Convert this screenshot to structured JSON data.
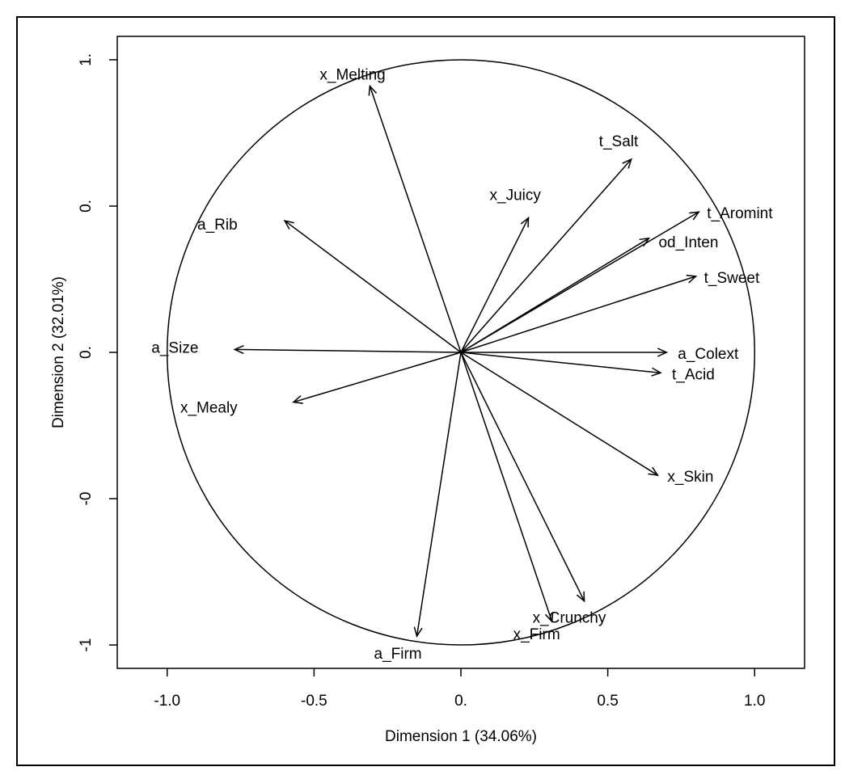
{
  "chart_data": {
    "type": "scatter",
    "subtype": "correlation-circle",
    "xlabel": "Dimension 1 (34.06%)",
    "ylabel": "Dimension 2 (32.01%)",
    "xlim": [
      -1.17,
      1.17
    ],
    "ylim": [
      -1.08,
      1.08
    ],
    "x_ticks": [
      {
        "value": -1.0,
        "label": "-1.0"
      },
      {
        "value": -0.5,
        "label": "-0.5"
      },
      {
        "value": 0.0,
        "label": "0."
      },
      {
        "value": 0.5,
        "label": "0.5"
      },
      {
        "value": 1.0,
        "label": "1.0"
      }
    ],
    "y_ticks": [
      {
        "value": 1.0,
        "label": "1."
      },
      {
        "value": 0.5,
        "label": "0."
      },
      {
        "value": 0.0,
        "label": "0."
      },
      {
        "value": -0.5,
        "label": "-0"
      },
      {
        "value": -1.0,
        "label": "-1"
      }
    ],
    "unit_circle": true,
    "grid": false,
    "color": "#000000",
    "variables": [
      {
        "name": "x_Melting",
        "x": -0.31,
        "y": 0.91
      },
      {
        "name": "t_Salt",
        "x": 0.58,
        "y": 0.66
      },
      {
        "name": "x_Juicy",
        "x": 0.23,
        "y": 0.46
      },
      {
        "name": "a_Rib",
        "x": -0.6,
        "y": 0.45
      },
      {
        "name": "t_Aromint",
        "x": 0.81,
        "y": 0.48
      },
      {
        "name": "od_Inten",
        "x": 0.64,
        "y": 0.39
      },
      {
        "name": "t_Sweet",
        "x": 0.8,
        "y": 0.26
      },
      {
        "name": "a_Size",
        "x": -0.77,
        "y": 0.01
      },
      {
        "name": "x_Mealy",
        "x": -0.57,
        "y": -0.17
      },
      {
        "name": "a_Colext",
        "x": 0.7,
        "y": 0.0
      },
      {
        "name": "t_Acid",
        "x": 0.68,
        "y": -0.07
      },
      {
        "name": "x_Skin",
        "x": 0.67,
        "y": -0.42
      },
      {
        "name": "x_Crunchy",
        "x": 0.42,
        "y": -0.85
      },
      {
        "name": "x_Firm",
        "x": 0.31,
        "y": -0.92
      },
      {
        "name": "a_Firm",
        "x": -0.15,
        "y": -0.97
      }
    ]
  }
}
